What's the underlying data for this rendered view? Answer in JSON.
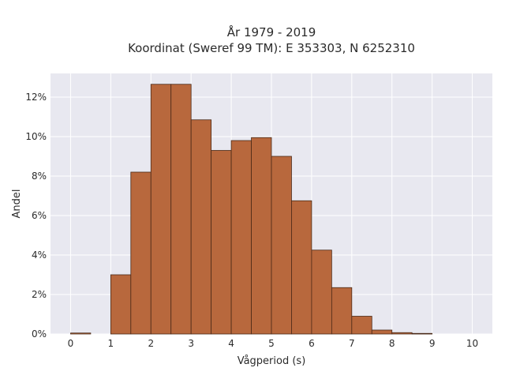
{
  "chart_data": {
    "type": "bar",
    "title_lines": [
      "År 1979 - 2019",
      "Koordinat (Sweref 99 TM): E 353303, N 6252310"
    ],
    "xlabel": "Vågperiod (s)",
    "ylabel": "Andel",
    "xlim": [
      -0.5,
      10.5
    ],
    "ylim": [
      0,
      13.2
    ],
    "x_ticks": [
      0,
      1,
      2,
      3,
      4,
      5,
      6,
      7,
      8,
      9,
      10
    ],
    "y_ticks": [
      0,
      2,
      4,
      6,
      8,
      10,
      12
    ],
    "y_tick_suffix": "%",
    "bin_width": 0.5,
    "bar_color": "#b8683d",
    "bar_edge_color": "#4a2a18",
    "plot_background": "#e8e8f0",
    "grid": true,
    "bins": [
      {
        "x0": 0.0,
        "value": 0.05
      },
      {
        "x0": 0.5,
        "value": 0
      },
      {
        "x0": 1.0,
        "value": 3.0
      },
      {
        "x0": 1.5,
        "value": 8.2
      },
      {
        "x0": 2.0,
        "value": 12.65
      },
      {
        "x0": 2.5,
        "value": 12.65
      },
      {
        "x0": 3.0,
        "value": 10.85
      },
      {
        "x0": 3.5,
        "value": 9.3
      },
      {
        "x0": 4.0,
        "value": 9.8
      },
      {
        "x0": 4.5,
        "value": 9.95
      },
      {
        "x0": 5.0,
        "value": 9.0
      },
      {
        "x0": 5.5,
        "value": 6.75
      },
      {
        "x0": 6.0,
        "value": 4.25
      },
      {
        "x0": 6.5,
        "value": 2.35
      },
      {
        "x0": 7.0,
        "value": 0.9
      },
      {
        "x0": 7.5,
        "value": 0.2
      },
      {
        "x0": 8.0,
        "value": 0.07
      },
      {
        "x0": 8.5,
        "value": 0.03
      }
    ]
  }
}
